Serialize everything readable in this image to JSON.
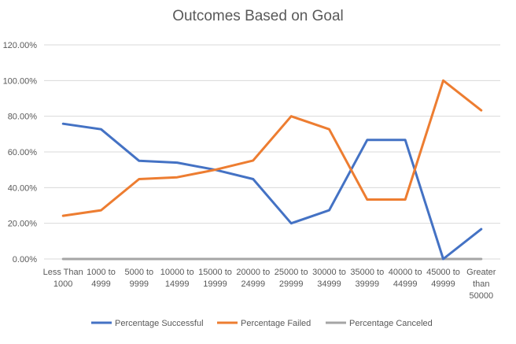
{
  "chart_data": {
    "type": "line",
    "title": "Outcomes Based on Goal",
    "categories": [
      [
        "Less Than",
        "1000"
      ],
      [
        "1000 to",
        "4999"
      ],
      [
        "5000 to",
        "9999"
      ],
      [
        "10000 to",
        "14999"
      ],
      [
        "15000 to",
        "19999"
      ],
      [
        "20000 to",
        "24999"
      ],
      [
        "25000 to",
        "29999"
      ],
      [
        "30000 to",
        "34999"
      ],
      [
        "35000 to",
        "39999"
      ],
      [
        "40000 to",
        "44999"
      ],
      [
        "45000 to",
        "49999"
      ],
      [
        "Greater",
        "than",
        "50000"
      ]
    ],
    "series": [
      {
        "name": "Percentage Successful",
        "color": "#4472C4",
        "values": [
          75.8,
          72.7,
          55.0,
          54.0,
          50.0,
          44.8,
          20.0,
          27.3,
          66.7,
          66.7,
          0.0,
          16.7
        ]
      },
      {
        "name": "Percentage Failed",
        "color": "#ED7D31",
        "values": [
          24.2,
          27.3,
          44.8,
          45.8,
          50.0,
          55.2,
          80.0,
          72.7,
          33.3,
          33.3,
          100.0,
          83.3
        ]
      },
      {
        "name": "Percentage Canceled",
        "color": "#A5A5A5",
        "values": [
          0,
          0,
          0,
          0,
          0,
          0,
          0,
          0,
          0,
          0,
          0,
          0
        ]
      }
    ],
    "yticks": [
      "0.00%",
      "20.00%",
      "40.00%",
      "60.00%",
      "80.00%",
      "100.00%",
      "120.00%"
    ],
    "ylim": [
      0,
      120
    ],
    "grid": true,
    "legend": "bottom"
  }
}
